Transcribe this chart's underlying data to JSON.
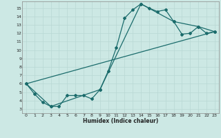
{
  "xlabel": "Humidex (Indice chaleur)",
  "ylabel": "",
  "bg_color": "#cce8e4",
  "grid_color": "#b8d8d4",
  "line_color": "#1a6b6b",
  "xlim": [
    -0.5,
    23.5
  ],
  "ylim": [
    2.5,
    15.8
  ],
  "xticks": [
    0,
    1,
    2,
    3,
    4,
    5,
    6,
    7,
    8,
    9,
    10,
    11,
    12,
    13,
    14,
    15,
    16,
    17,
    18,
    19,
    20,
    21,
    22,
    23
  ],
  "yticks": [
    3,
    4,
    5,
    6,
    7,
    8,
    9,
    10,
    11,
    12,
    13,
    14,
    15
  ],
  "line1_x": [
    0,
    1,
    2,
    3,
    4,
    5,
    6,
    7,
    8,
    9,
    10,
    11,
    12,
    13,
    14,
    15,
    16,
    17,
    18,
    19,
    20,
    21,
    22,
    23
  ],
  "line1_y": [
    6.0,
    4.8,
    3.8,
    3.3,
    3.3,
    4.6,
    4.6,
    4.6,
    4.2,
    5.3,
    7.5,
    10.3,
    13.8,
    14.8,
    15.5,
    15.0,
    14.6,
    14.8,
    13.4,
    11.9,
    12.0,
    12.8,
    12.0,
    12.2
  ],
  "line2_x": [
    0,
    3,
    9,
    14,
    18,
    21,
    23
  ],
  "line2_y": [
    6.0,
    3.3,
    5.3,
    15.5,
    13.4,
    12.8,
    12.2
  ],
  "line3_x": [
    0,
    23
  ],
  "line3_y": [
    6.0,
    12.2
  ],
  "markersize": 2.0,
  "linewidth": 0.9
}
